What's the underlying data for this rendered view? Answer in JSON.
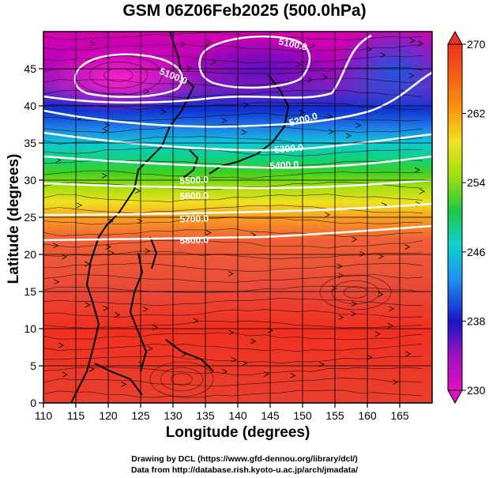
{
  "chart_data": {
    "type": "heatmap",
    "title": "GSM 06Z06Feb2025 (500.0hPa)",
    "xlabel": "Longitude (degrees)",
    "ylabel": "Latitude  (degrees)",
    "xlim": [
      110,
      170
    ],
    "ylim": [
      0,
      50
    ],
    "x_ticks": [
      110,
      115,
      120,
      125,
      130,
      135,
      140,
      145,
      150,
      155,
      160,
      165
    ],
    "y_ticks": [
      0,
      5,
      10,
      15,
      20,
      25,
      30,
      35,
      40,
      45
    ],
    "colorbar": {
      "min": 230,
      "max": 270,
      "ticks": [
        230,
        238,
        246,
        254,
        262,
        270
      ]
    },
    "contour_labels": [
      "5100.0",
      "5100.0",
      "5200.0",
      "5300.0",
      "5400.0",
      "5500.0",
      "5600.0",
      "5700.0",
      "5800.0"
    ],
    "grid": true
  },
  "credits": {
    "line1": "Drawing by DCL (https://www.gfd-dennou.org/library/dcl/)",
    "line2": "Data from http://database.rish.kyoto-u.ac.jp/arch/jmadata/"
  },
  "colors": {
    "warm": "#e8442e",
    "cold": "#b000a8",
    "contour": "#ffffff"
  }
}
